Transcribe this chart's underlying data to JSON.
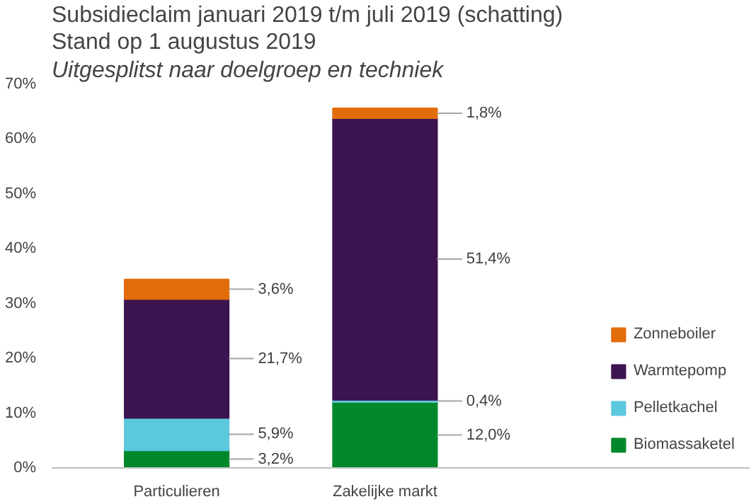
{
  "chart_data": {
    "type": "bar",
    "stacked": true,
    "title": "Subsidieclaim januari 2019 t/m juli 2019 (schatting)",
    "subtitle": "Stand op 1 augustus 2019",
    "annotations": [
      "Uitgesplitst naar doelgroep en techniek"
    ],
    "categories": [
      "Particulieren",
      "Zakelijke markt"
    ],
    "series": [
      {
        "name": "Biomassaketel",
        "color": "#00882b",
        "values": [
          3.2,
          12.0
        ],
        "value_labels": [
          "3,2%",
          "12,0%"
        ]
      },
      {
        "name": "Pelletkachel",
        "color": "#5bc8de",
        "values": [
          5.9,
          0.4
        ],
        "value_labels": [
          "5,9%",
          "0,4%"
        ]
      },
      {
        "name": "Warmtepomp",
        "color": "#3c1450",
        "values": [
          21.7,
          51.4
        ],
        "value_labels": [
          "21,7%",
          "51,4%"
        ]
      },
      {
        "name": "Zonneboiler",
        "color": "#e36c0a",
        "values": [
          3.6,
          1.8
        ],
        "value_labels": [
          "3,6%",
          "1,8%"
        ]
      }
    ],
    "ylim": [
      0,
      70
    ],
    "yticks": [
      {
        "value": 0,
        "label": "0%"
      },
      {
        "value": 10,
        "label": "10%"
      },
      {
        "value": 20,
        "label": "20%"
      },
      {
        "value": 30,
        "label": "30%"
      },
      {
        "value": 40,
        "label": "40%"
      },
      {
        "value": 50,
        "label": "50%"
      },
      {
        "value": 60,
        "label": "60%"
      },
      {
        "value": 70,
        "label": "70%"
      }
    ],
    "grid": false,
    "legend": "right"
  }
}
